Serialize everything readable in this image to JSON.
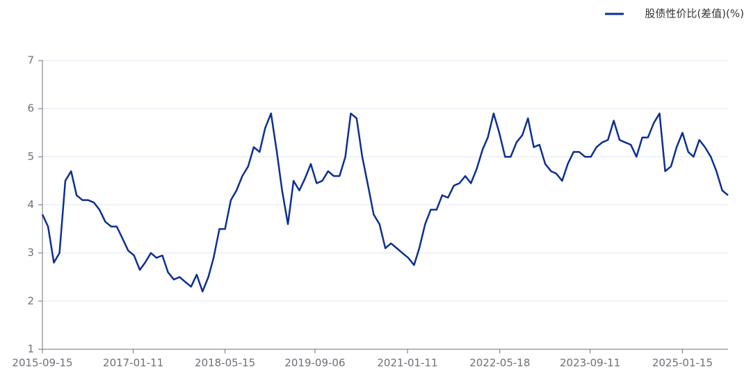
{
  "chart_data": {
    "type": "line",
    "x": [
      "2015-09-15",
      "2015-10-15",
      "2015-11-15",
      "2015-12-15",
      "2016-01-15",
      "2016-02-15",
      "2016-03-15",
      "2016-04-15",
      "2016-05-15",
      "2016-06-15",
      "2016-07-15",
      "2016-08-15",
      "2016-09-15",
      "2016-10-15",
      "2016-11-15",
      "2016-12-15",
      "2017-01-15",
      "2017-02-15",
      "2017-03-15",
      "2017-04-15",
      "2017-05-15",
      "2017-06-15",
      "2017-07-15",
      "2017-08-15",
      "2017-09-15",
      "2017-10-15",
      "2017-11-15",
      "2017-12-15",
      "2018-01-15",
      "2018-02-15",
      "2018-03-15",
      "2018-04-15",
      "2018-05-15",
      "2018-06-15",
      "2018-07-15",
      "2018-08-15",
      "2018-09-15",
      "2018-10-15",
      "2018-11-15",
      "2018-12-15",
      "2019-01-15",
      "2019-02-15",
      "2019-03-15",
      "2019-04-15",
      "2019-05-15",
      "2019-06-15",
      "2019-07-15",
      "2019-08-15",
      "2019-09-15",
      "2019-10-15",
      "2019-11-15",
      "2019-12-15",
      "2020-01-15",
      "2020-02-15",
      "2020-03-15",
      "2020-04-15",
      "2020-05-15",
      "2020-06-15",
      "2020-07-15",
      "2020-08-15",
      "2020-09-15",
      "2020-10-15",
      "2020-11-15",
      "2020-12-15",
      "2021-01-15",
      "2021-02-15",
      "2021-03-15",
      "2021-04-15",
      "2021-05-15",
      "2021-06-15",
      "2021-07-15",
      "2021-08-15",
      "2021-09-15",
      "2021-10-15",
      "2021-11-15",
      "2021-12-15",
      "2022-01-15",
      "2022-02-15",
      "2022-03-15",
      "2022-04-15",
      "2022-05-15",
      "2022-06-15",
      "2022-07-15",
      "2022-08-15",
      "2022-09-15",
      "2022-10-15",
      "2022-11-15",
      "2022-12-15",
      "2023-01-15",
      "2023-02-15",
      "2023-03-15",
      "2023-04-15",
      "2023-05-15",
      "2023-06-15",
      "2023-07-15",
      "2023-08-15",
      "2023-09-15",
      "2023-10-15",
      "2023-11-15",
      "2023-12-15",
      "2024-01-15",
      "2024-02-15",
      "2024-03-15",
      "2024-04-15",
      "2024-05-15",
      "2024-06-15",
      "2024-07-15",
      "2024-08-15",
      "2024-09-15",
      "2024-10-15",
      "2024-11-15",
      "2024-12-15",
      "2025-01-15",
      "2025-02-15",
      "2025-03-15",
      "2025-04-15",
      "2025-05-15",
      "2025-06-15",
      "2025-07-15",
      "2025-08-15",
      "2025-09-15"
    ],
    "series": [
      {
        "name": "股债性价比(差值)(%)",
        "color": "#0d2f91",
        "values": [
          3.8,
          3.55,
          2.8,
          3.0,
          4.5,
          4.7,
          4.2,
          4.1,
          4.1,
          4.05,
          3.9,
          3.65,
          3.55,
          3.55,
          3.3,
          3.05,
          2.95,
          2.65,
          2.8,
          3.0,
          2.9,
          2.95,
          2.6,
          2.45,
          2.5,
          2.4,
          2.3,
          2.55,
          2.2,
          2.5,
          2.9,
          3.5,
          3.5,
          4.1,
          4.3,
          4.6,
          4.8,
          5.2,
          5.1,
          5.6,
          5.9,
          5.1,
          4.3,
          3.6,
          4.5,
          4.3,
          4.55,
          4.85,
          4.45,
          4.5,
          4.7,
          4.6,
          4.6,
          5.0,
          5.9,
          5.8,
          5.0,
          4.4,
          3.8,
          3.6,
          3.1,
          3.2,
          3.1,
          3.0,
          2.9,
          2.75,
          3.1,
          3.6,
          3.9,
          3.9,
          4.2,
          4.15,
          4.4,
          4.45,
          4.6,
          4.45,
          4.75,
          5.15,
          5.4,
          5.9,
          5.5,
          5.0,
          5.0,
          5.3,
          5.45,
          5.8,
          5.2,
          5.25,
          4.85,
          4.7,
          4.65,
          4.5,
          4.85,
          5.1,
          5.1,
          5.0,
          5.0,
          5.2,
          5.3,
          5.35,
          5.75,
          5.35,
          5.3,
          5.25,
          5.0,
          5.4,
          5.4,
          5.7,
          5.9,
          4.7,
          4.8,
          5.2,
          5.5,
          5.1,
          5.0,
          5.35,
          5.2,
          5.0,
          4.7,
          4.3,
          4.2
        ]
      }
    ],
    "xlim": [
      "2015-09-15",
      "2025-09-15"
    ],
    "xticks": [
      "2015-09-15",
      "2017-01-11",
      "2018-05-15",
      "2019-09-06",
      "2021-01-11",
      "2022-05-18",
      "2023-09-11",
      "2025-01-15"
    ],
    "ylim": [
      1,
      7
    ],
    "yticks": [
      1,
      2,
      3,
      4,
      5,
      6,
      7
    ],
    "grid": true,
    "legend": "top-right"
  }
}
